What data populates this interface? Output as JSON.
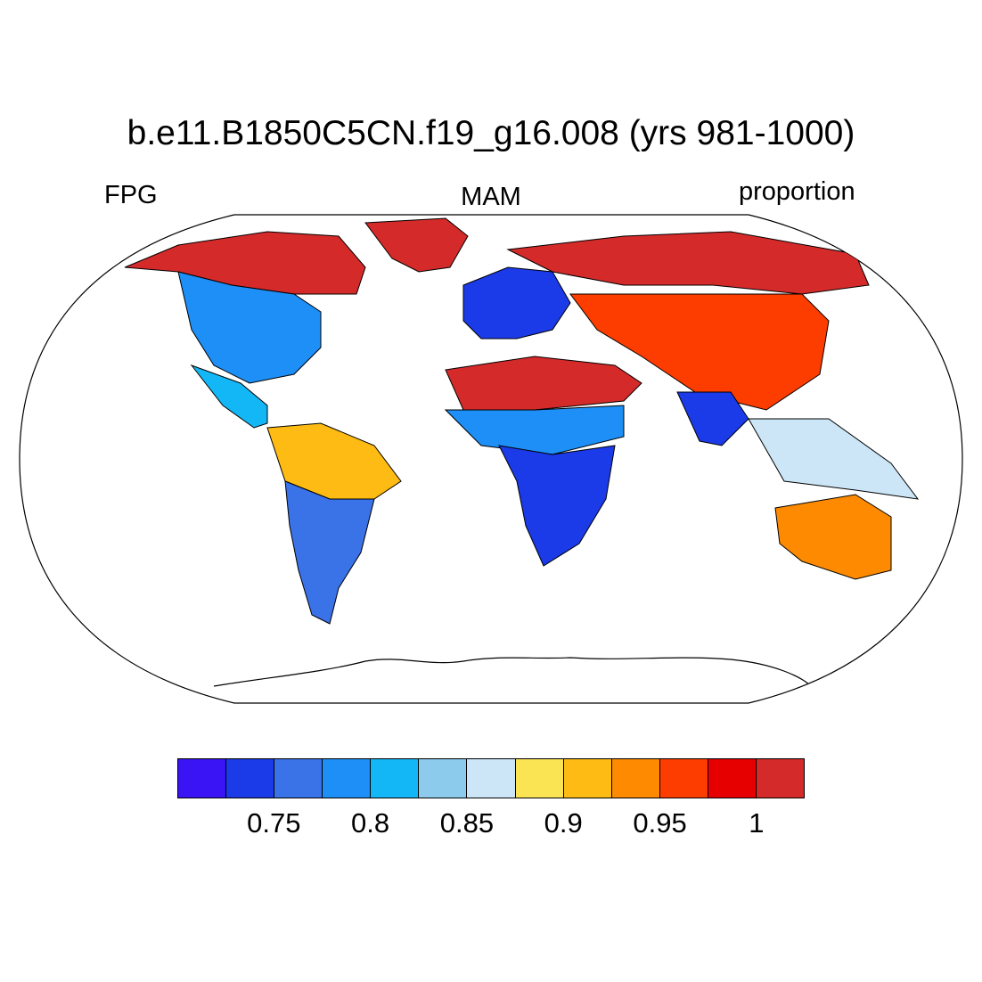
{
  "title": "b.e11.B1850C5CN.f19_g16.008 (yrs 981-1000)",
  "left_label": "FPG",
  "center_label": "MAM",
  "right_label": "proportion",
  "colorbar": {
    "colors": [
      "#3a14f5",
      "#1b3ae8",
      "#3a72e8",
      "#1d8ff6",
      "#14b7f6",
      "#8ccbec",
      "#cce6f7",
      "#fae454",
      "#fdbb13",
      "#fd8a00",
      "#fd3c00",
      "#e60000",
      "#d42a2a"
    ],
    "tick_labels": [
      "0.75",
      "0.8",
      "0.85",
      "0.9",
      "0.95",
      "1"
    ]
  },
  "map": {
    "projection": "Robinson",
    "field": "FPG",
    "season": "MAM",
    "units": "proportion",
    "regions": [
      {
        "name": "North America high latitudes",
        "value_class": 12
      },
      {
        "name": "Greenland margins",
        "value_class": 12
      },
      {
        "name": "North America mid latitudes",
        "value_class": 3
      },
      {
        "name": "Mexico and Central America",
        "value_class": 4
      },
      {
        "name": "South America north",
        "value_class": 8
      },
      {
        "name": "South America south",
        "value_class": 2
      },
      {
        "name": "Europe",
        "value_class": 1
      },
      {
        "name": "Siberia",
        "value_class": 12
      },
      {
        "name": "Central Asia",
        "value_class": 10
      },
      {
        "name": "Sahara and Arabia",
        "value_class": 12
      },
      {
        "name": "Sahel",
        "value_class": 3
      },
      {
        "name": "Southern Africa",
        "value_class": 1
      },
      {
        "name": "India",
        "value_class": 1
      },
      {
        "name": "Southeast Asia",
        "value_class": 6
      },
      {
        "name": "Australia",
        "value_class": 9
      }
    ]
  }
}
